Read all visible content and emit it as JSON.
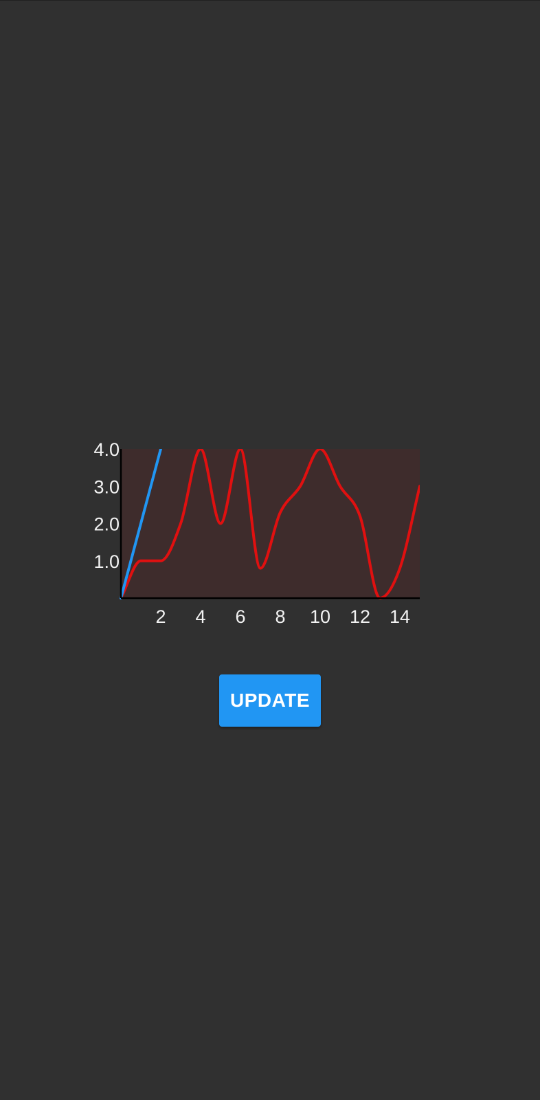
{
  "controls": {
    "update_label": "UPDATE"
  },
  "colors": {
    "background": "#303030",
    "plot_background": "#3e2c2c",
    "series_red": "#e01010",
    "series_blue": "#2196f3",
    "axis": "#000000",
    "tick_text": "#f2f2f2",
    "button": "#2196f3"
  },
  "chart_data": {
    "type": "line",
    "title": "",
    "xlabel": "",
    "ylabel": "",
    "xlim": [
      0,
      15
    ],
    "ylim": [
      0,
      4
    ],
    "grid": false,
    "x_ticks": [
      "2",
      "4",
      "6",
      "8",
      "10",
      "12",
      "14"
    ],
    "y_ticks": [
      "1.0",
      "2.0",
      "3.0",
      "4.0"
    ],
    "series": [
      {
        "color": "#e01010",
        "smooth": true,
        "x": [
          0,
          1,
          2,
          3,
          4,
          5,
          6,
          7,
          8,
          9,
          10,
          11,
          12,
          13,
          14,
          15
        ],
        "y": [
          0,
          1.0,
          1.0,
          2.0,
          4.0,
          2.0,
          4.0,
          0.8,
          2.3,
          3.0,
          4.0,
          3.0,
          2.2,
          0,
          0.8,
          3.0
        ]
      },
      {
        "color": "#2196f3",
        "smooth": false,
        "x": [
          0,
          2
        ],
        "y": [
          0,
          4
        ]
      }
    ]
  }
}
